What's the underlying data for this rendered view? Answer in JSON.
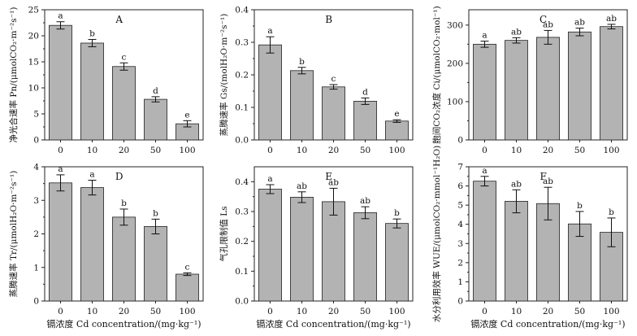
{
  "x_unit_label": "镉浓度 Cd concentration/(mg·kg⁻¹)",
  "chart_data": [
    {
      "type": "bar",
      "panel": "A",
      "categories": [
        "0",
        "10",
        "20",
        "50",
        "100"
      ],
      "values": [
        22,
        18.6,
        14.1,
        7.8,
        3.1
      ],
      "errors": [
        0.7,
        0.7,
        0.7,
        0.5,
        0.6
      ],
      "labels": [
        "a",
        "b",
        "c",
        "d",
        "e"
      ],
      "ylabel": "净光合速率 Pn/(μmolCO₂·m⁻²s⁻¹)",
      "ylim": [
        0,
        25
      ],
      "yticks": [
        0,
        5,
        10,
        15,
        20,
        25
      ],
      "xlabel": ""
    },
    {
      "type": "bar",
      "panel": "B",
      "categories": [
        "0",
        "10",
        "20",
        "50",
        "100"
      ],
      "values": [
        0.292,
        0.213,
        0.163,
        0.119,
        0.058
      ],
      "errors": [
        0.025,
        0.01,
        0.007,
        0.01,
        0.004
      ],
      "labels": [
        "a",
        "b",
        "c",
        "d",
        "e"
      ],
      "ylabel": "蒸腾速率 Gs/(molH₂O·m⁻²s⁻¹)",
      "ylim": [
        0,
        0.4
      ],
      "yticks": [
        0.0,
        0.1,
        0.2,
        0.3,
        0.4
      ],
      "xlabel": ""
    },
    {
      "type": "bar",
      "panel": "C",
      "categories": [
        "0",
        "10",
        "20",
        "50",
        "100"
      ],
      "values": [
        250,
        260,
        268,
        282,
        296
      ],
      "errors": [
        8,
        7,
        18,
        10,
        6
      ],
      "labels": [
        "a",
        "ab",
        "ab",
        "ab",
        "ab"
      ],
      "ylabel": "胞间CO₂浓度 Ci/(μmolCO₂·mol⁻¹)",
      "ylim": [
        0,
        340
      ],
      "yticks": [
        0,
        100,
        200,
        300
      ],
      "xlabel": ""
    },
    {
      "type": "bar",
      "panel": "D",
      "categories": [
        "0",
        "10",
        "20",
        "50",
        "100"
      ],
      "values": [
        3.52,
        3.38,
        2.5,
        2.22,
        0.8
      ],
      "errors": [
        0.24,
        0.22,
        0.24,
        0.22,
        0.04
      ],
      "labels": [
        "a",
        "a",
        "b",
        "b",
        "c"
      ],
      "ylabel": "蒸腾速率 Tr/(μmolH₂O·m⁻²s⁻¹)",
      "ylim": [
        0,
        4
      ],
      "yticks": [
        0,
        1,
        2,
        3,
        4
      ],
      "xlabel": "镉浓度 Cd concentration/(mg·kg⁻¹)"
    },
    {
      "type": "bar",
      "panel": "E",
      "categories": [
        "0",
        "10",
        "20",
        "50",
        "100"
      ],
      "values": [
        0.375,
        0.348,
        0.333,
        0.296,
        0.26
      ],
      "errors": [
        0.015,
        0.018,
        0.045,
        0.02,
        0.015
      ],
      "labels": [
        "a",
        "ab",
        "ab",
        "ab",
        "b"
      ],
      "ylabel": "气孔限制值 Ls",
      "ylim": [
        0,
        0.45
      ],
      "yticks": [
        0.0,
        0.1,
        0.2,
        0.3,
        0.4
      ],
      "xlabel": "镉浓度 Cd concentration/(mg·kg⁻¹)"
    },
    {
      "type": "bar",
      "panel": "F",
      "categories": [
        "0",
        "10",
        "20",
        "50",
        "100"
      ],
      "values": [
        6.25,
        5.2,
        5.08,
        4.02,
        3.58
      ],
      "errors": [
        0.25,
        0.6,
        0.85,
        0.65,
        0.75
      ],
      "labels": [
        "a",
        "ab",
        "ab",
        "b",
        "b"
      ],
      "ylabel": "水分利用效率 WUE/(μmolCO₂·mmol⁻¹H₂O)",
      "ylim": [
        0,
        7
      ],
      "yticks": [
        0,
        1,
        2,
        3,
        4,
        5,
        6,
        7
      ],
      "xlabel": "镉浓度 Cd concentration/(mg·kg⁻¹)"
    }
  ]
}
